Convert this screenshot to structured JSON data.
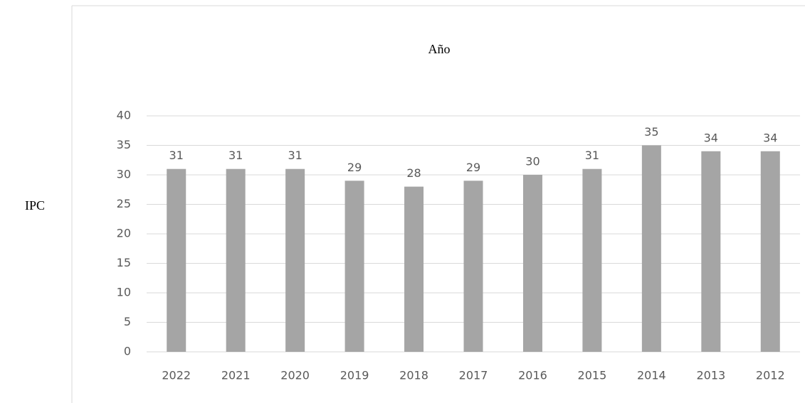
{
  "chart_data": {
    "type": "bar",
    "title": "Año",
    "y_label": "IPC",
    "categories": [
      "2022",
      "2021",
      "2020",
      "2019",
      "2018",
      "2017",
      "2016",
      "2015",
      "2014",
      "2013",
      "2012"
    ],
    "values": [
      31,
      31,
      31,
      29,
      28,
      29,
      30,
      31,
      35,
      34,
      34
    ],
    "color": "#a5a5a5",
    "ylim": [
      0,
      40
    ],
    "yticks": [
      0,
      5,
      10,
      15,
      20,
      25,
      30,
      35,
      40
    ],
    "grid": true
  }
}
